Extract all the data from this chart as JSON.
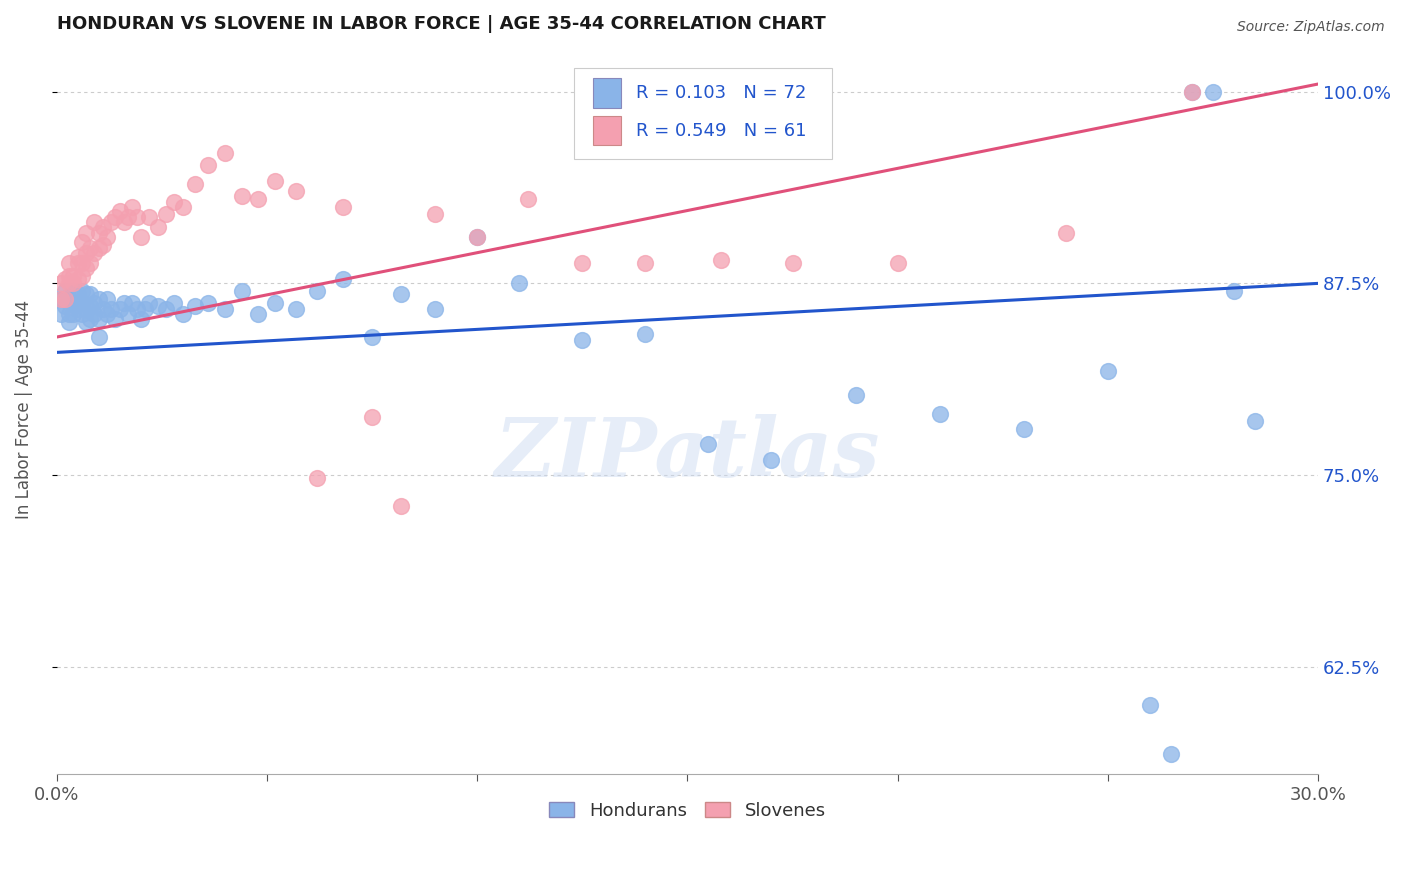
{
  "title": "HONDURAN VS SLOVENE IN LABOR FORCE | AGE 35-44 CORRELATION CHART",
  "source": "Source: ZipAtlas.com",
  "ylabel": "In Labor Force | Age 35-44",
  "xlim": [
    0.0,
    0.3
  ],
  "ylim": [
    0.555,
    1.03
  ],
  "xticks": [
    0.0,
    0.05,
    0.1,
    0.15,
    0.2,
    0.25,
    0.3
  ],
  "xticklabels": [
    "0.0%",
    "",
    "",
    "",
    "",
    "",
    "30.0%"
  ],
  "yticks": [
    0.625,
    0.75,
    0.875,
    1.0
  ],
  "yticklabels": [
    "62.5%",
    "75.0%",
    "87.5%",
    "100.0%"
  ],
  "honduran_color": "#8ab4e8",
  "slovene_color": "#f4a0b0",
  "trendline_honduran_color": "#2255cc",
  "trendline_slovene_color": "#e0507a",
  "legend_R_honduran": "R = 0.103",
  "legend_N_honduran": "N = 72",
  "legend_R_slovene": "R = 0.549",
  "legend_N_slovene": "N = 61",
  "watermark": "ZIPatlas",
  "honduran_x": [
    0.001,
    0.001,
    0.002,
    0.002,
    0.003,
    0.003,
    0.003,
    0.004,
    0.004,
    0.004,
    0.005,
    0.005,
    0.005,
    0.006,
    0.006,
    0.006,
    0.007,
    0.007,
    0.007,
    0.008,
    0.008,
    0.008,
    0.009,
    0.009,
    0.01,
    0.01,
    0.01,
    0.011,
    0.012,
    0.012,
    0.013,
    0.014,
    0.015,
    0.016,
    0.017,
    0.018,
    0.019,
    0.02,
    0.021,
    0.022,
    0.024,
    0.026,
    0.028,
    0.03,
    0.033,
    0.036,
    0.04,
    0.044,
    0.048,
    0.052,
    0.057,
    0.062,
    0.068,
    0.075,
    0.082,
    0.09,
    0.1,
    0.11,
    0.125,
    0.14,
    0.155,
    0.17,
    0.19,
    0.21,
    0.23,
    0.25,
    0.26,
    0.265,
    0.27,
    0.275,
    0.28,
    0.285
  ],
  "honduran_y": [
    0.855,
    0.865,
    0.86,
    0.87,
    0.85,
    0.855,
    0.865,
    0.855,
    0.862,
    0.87,
    0.858,
    0.862,
    0.868,
    0.855,
    0.862,
    0.87,
    0.85,
    0.858,
    0.868,
    0.852,
    0.86,
    0.868,
    0.855,
    0.862,
    0.84,
    0.852,
    0.865,
    0.858,
    0.855,
    0.865,
    0.858,
    0.852,
    0.858,
    0.862,
    0.855,
    0.862,
    0.858,
    0.852,
    0.858,
    0.862,
    0.86,
    0.858,
    0.862,
    0.855,
    0.86,
    0.862,
    0.858,
    0.87,
    0.855,
    0.862,
    0.858,
    0.87,
    0.878,
    0.84,
    0.868,
    0.858,
    0.905,
    0.875,
    0.838,
    0.842,
    0.77,
    0.76,
    0.802,
    0.79,
    0.78,
    0.818,
    0.6,
    0.568,
    1.0,
    1.0,
    0.87,
    0.785
  ],
  "slovene_x": [
    0.001,
    0.001,
    0.002,
    0.002,
    0.003,
    0.003,
    0.003,
    0.004,
    0.004,
    0.005,
    0.005,
    0.005,
    0.006,
    0.006,
    0.006,
    0.007,
    0.007,
    0.007,
    0.008,
    0.008,
    0.009,
    0.009,
    0.01,
    0.01,
    0.011,
    0.011,
    0.012,
    0.013,
    0.014,
    0.015,
    0.016,
    0.017,
    0.018,
    0.019,
    0.02,
    0.022,
    0.024,
    0.026,
    0.028,
    0.03,
    0.033,
    0.036,
    0.04,
    0.044,
    0.048,
    0.052,
    0.057,
    0.062,
    0.068,
    0.075,
    0.082,
    0.09,
    0.1,
    0.112,
    0.125,
    0.14,
    0.158,
    0.175,
    0.2,
    0.24,
    0.27
  ],
  "slovene_y": [
    0.865,
    0.875,
    0.878,
    0.865,
    0.88,
    0.875,
    0.888,
    0.88,
    0.875,
    0.888,
    0.878,
    0.892,
    0.88,
    0.888,
    0.902,
    0.885,
    0.895,
    0.908,
    0.888,
    0.898,
    0.895,
    0.915,
    0.898,
    0.908,
    0.9,
    0.912,
    0.905,
    0.915,
    0.918,
    0.922,
    0.915,
    0.918,
    0.925,
    0.918,
    0.905,
    0.918,
    0.912,
    0.92,
    0.928,
    0.925,
    0.94,
    0.952,
    0.96,
    0.932,
    0.93,
    0.942,
    0.935,
    0.748,
    0.925,
    0.788,
    0.73,
    0.92,
    0.905,
    0.93,
    0.888,
    0.888,
    0.89,
    0.888,
    0.888,
    0.908,
    1.0
  ]
}
